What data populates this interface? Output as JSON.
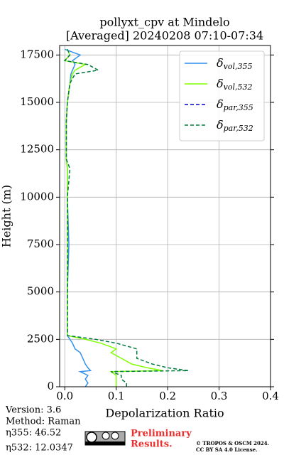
{
  "chart_data": {
    "type": "line",
    "title": "pollyxt_cpv at Mindelo",
    "subtitle": "[Averaged] 20240208 07:10-07:34",
    "x_label": "Depolarization Ratio",
    "y_label": "Height (m)",
    "y": [
      0,
      200,
      400,
      600,
      800,
      850,
      1000,
      1200,
      1500,
      1800,
      2000,
      2300,
      2500,
      2700,
      3000,
      5000,
      7500,
      10000,
      11500,
      12000,
      14000,
      15000,
      16000,
      16500,
      16700,
      17000,
      17200,
      17500,
      17800
    ],
    "series": [
      {
        "name": "δvol,355",
        "color": "#3090ee",
        "dash": false,
        "values": [
          0.04,
          0.045,
          0.04,
          0.045,
          0.03,
          0.05,
          0.045,
          0.04,
          0.035,
          0.03,
          0.02,
          0.015,
          0.01,
          0.005,
          0.005,
          0.005,
          0.008,
          0.005,
          0.005,
          0.003,
          0.003,
          0.005,
          0.01,
          0.012,
          0.015,
          0.02,
          0.015,
          0.03,
          0.0
        ]
      },
      {
        "name": "δvol,532",
        "color": "#80ff00",
        "dash": false,
        "values": [
          0.1,
          0.1,
          0.1,
          0.1,
          0.09,
          0.19,
          0.16,
          0.13,
          0.11,
          0.09,
          0.1,
          0.07,
          0.04,
          0.005,
          0.005,
          0.005,
          0.005,
          0.005,
          0.005,
          0.003,
          0.003,
          0.005,
          0.01,
          0.015,
          0.02,
          0.04,
          0.0,
          0.01,
          0.005
        ]
      },
      {
        "name": "δpar,355",
        "color": "#0000cc",
        "dash": true,
        "values": [
          null,
          null,
          null,
          null,
          null,
          null,
          null,
          null,
          null,
          null,
          null,
          null,
          null,
          null,
          null,
          null,
          null,
          null,
          null,
          null,
          null,
          null,
          null,
          null,
          null,
          null,
          null,
          null,
          null
        ]
      },
      {
        "name": "δpar,532",
        "color": "#007a3d",
        "dash": true,
        "values": [
          0.12,
          0.12,
          0.11,
          0.11,
          0.09,
          0.24,
          0.2,
          0.17,
          0.14,
          0.14,
          0.14,
          0.1,
          0.06,
          0.005,
          0.005,
          0.005,
          0.005,
          0.005,
          0.01,
          0.003,
          0.003,
          0.005,
          0.01,
          0.02,
          0.065,
          0.045,
          0.0,
          0.01,
          0.005
        ]
      }
    ],
    "xlim": [
      -0.01,
      0.4
    ],
    "xticks": [
      {
        "value": 0,
        "label": "0.0"
      },
      0.1,
      0.2,
      0.3,
      0.4
    ],
    "ylim": [
      0,
      18000
    ],
    "yticks": [
      0,
      2500,
      5000,
      7500,
      10000,
      12500,
      15000,
      17500
    ],
    "grid": true,
    "legend": "upper right"
  },
  "info": [
    "Version: 3.6",
    "Method: Raman",
    "η355:  46.52",
    "η532: 12.0347"
  ],
  "badge": [
    "Preliminary",
    "Results."
  ],
  "copyright": [
    "© TROPOS & OSCM 2024.",
    "CC BY SA 4.0 License."
  ]
}
